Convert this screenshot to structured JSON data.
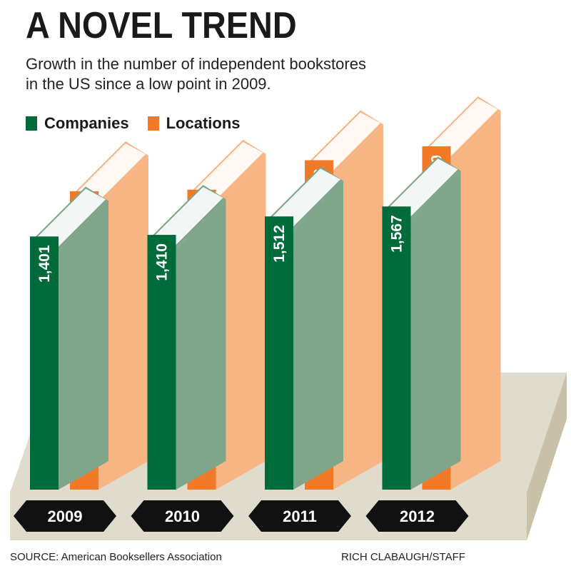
{
  "title": "A NOVEL TREND",
  "subtitle_lines": [
    "Growth in the number of independent bookstores",
    "in the US since a low point in 2009."
  ],
  "source": "SOURCE: American Booksellers Association",
  "credit": "RICH CLABAUGH/STAFF",
  "colors": {
    "companies": "#006b3a",
    "companies_side": "#7fa68a",
    "locations": "#f07a27",
    "locations_side": "#f8b584",
    "platform_top": "#e0dccd",
    "platform_side": "#c8c1a8",
    "year_badge": "#111111"
  },
  "chart_data": {
    "type": "bar",
    "categories": [
      "2009",
      "2010",
      "2011",
      "2012"
    ],
    "series": [
      {
        "name": "Companies",
        "values": [
          1401,
          1410,
          1512,
          1567
        ],
        "labels": [
          "1,401",
          "1,410",
          "1,512",
          "1,567"
        ]
      },
      {
        "name": "Locations",
        "values": [
          1651,
          1660,
          1823,
          1900
        ],
        "labels": [
          "1,651",
          "1,660",
          "1,823",
          "1,900"
        ]
      }
    ],
    "legend": "top-left"
  }
}
